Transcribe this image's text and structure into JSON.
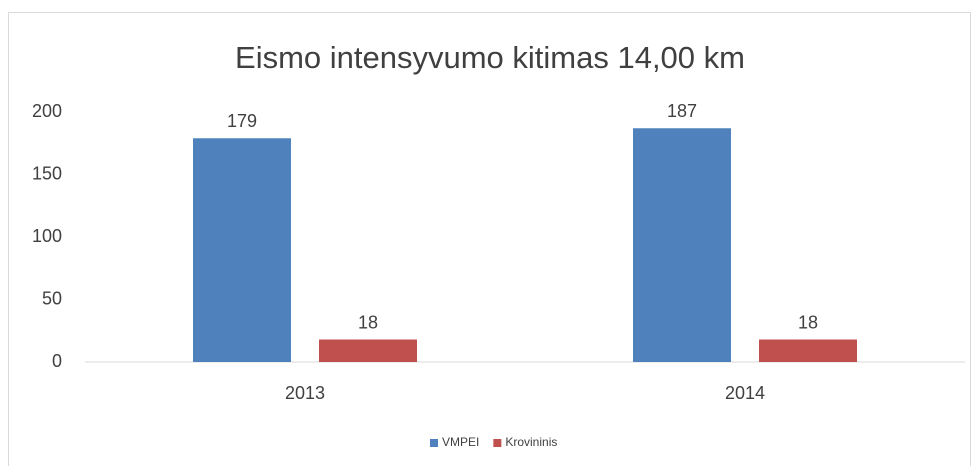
{
  "chart_data": {
    "type": "bar",
    "title": "Eismo intensyvumo kitimas 14,00 km",
    "categories": [
      "2013",
      "2014"
    ],
    "series": [
      {
        "name": "VMPEI",
        "color": "#4f81bd",
        "values": [
          179,
          187
        ]
      },
      {
        "name": "Krovininis",
        "color": "#c0504d",
        "values": [
          18,
          18
        ]
      }
    ],
    "ylim": [
      0,
      200
    ],
    "yticks": [
      0,
      50,
      100,
      150,
      200
    ],
    "grid": false,
    "legend": "bottom"
  }
}
